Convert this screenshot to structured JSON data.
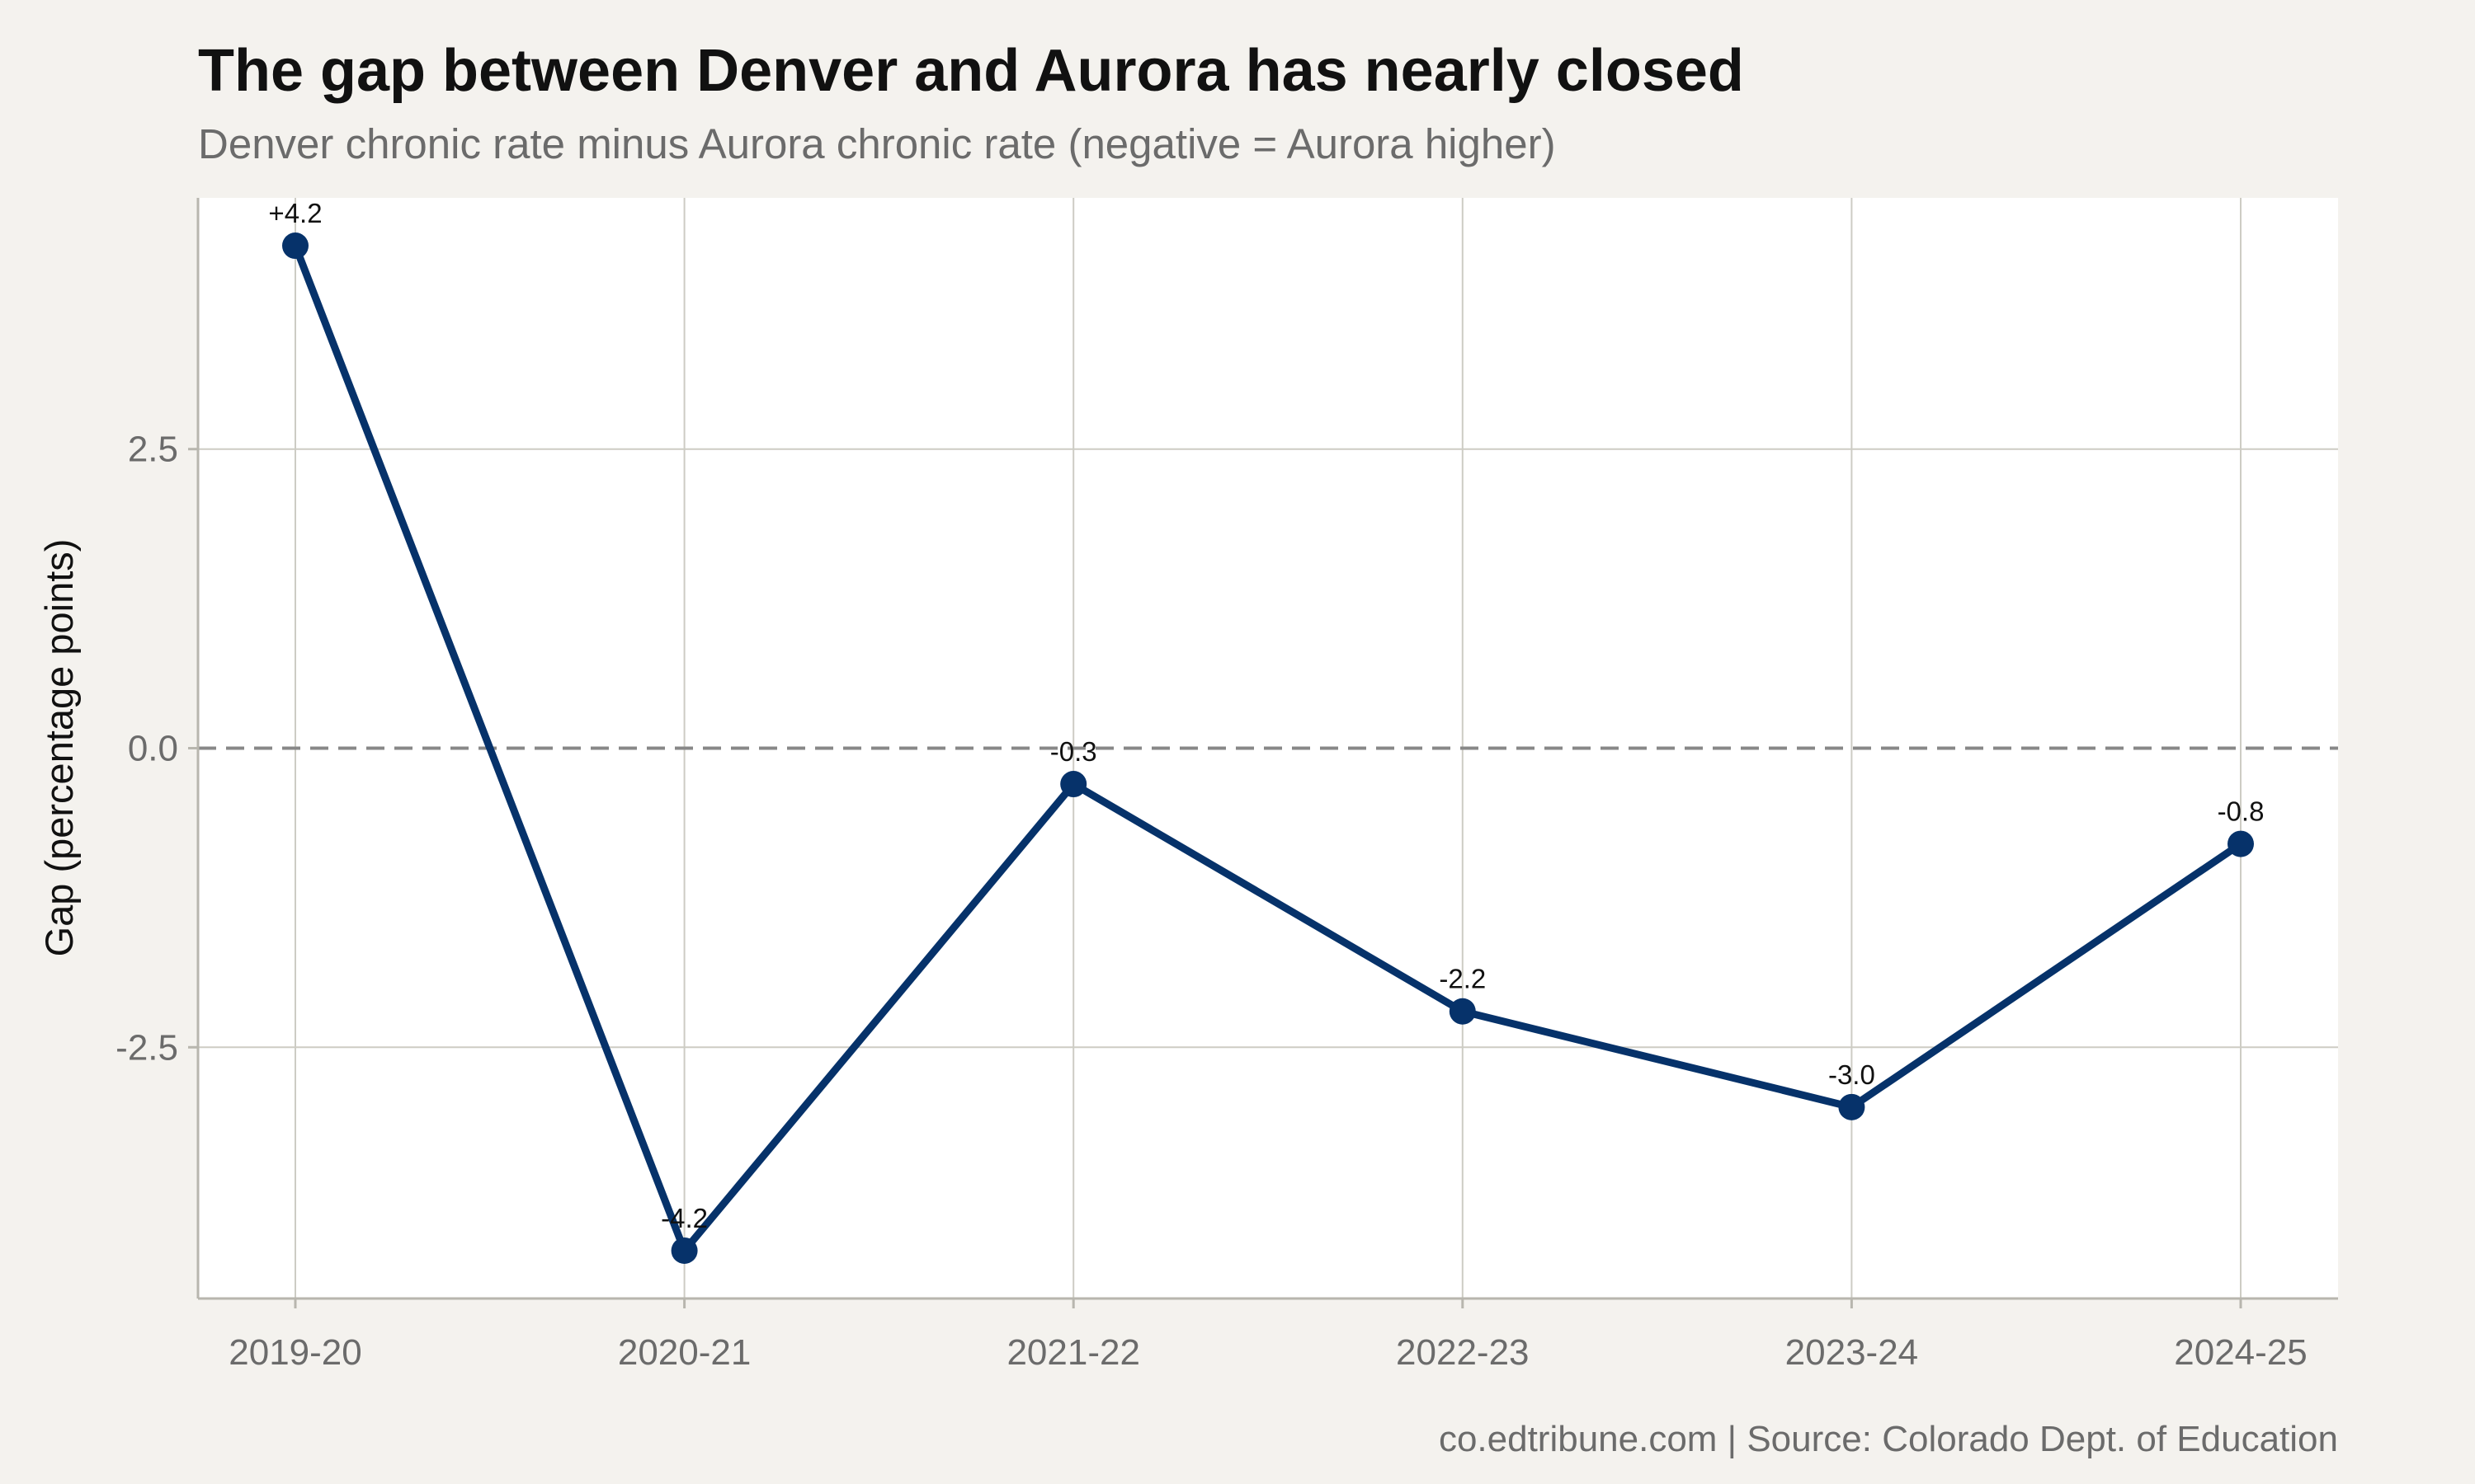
{
  "chart_data": {
    "type": "line",
    "title": "The gap between Denver and Aurora has nearly closed",
    "subtitle": "Denver chronic rate minus Aurora chronic rate (negative = Aurora higher)",
    "xlabel": "",
    "ylabel": "Gap (percentage points)",
    "caption": "co.edtribune.com | Source: Colorado Dept. of Education",
    "categories": [
      "2019-20",
      "2020-21",
      "2021-22",
      "2022-23",
      "2023-24",
      "2024-25"
    ],
    "values": [
      4.2,
      -4.2,
      -0.3,
      -2.2,
      -3.0,
      -0.8
    ],
    "data_labels": [
      "+4.2",
      "-4.2",
      "-0.3",
      "-2.2",
      "-3.0",
      "-0.8"
    ],
    "yticks": [
      -2.5,
      0.0,
      2.5
    ],
    "ytick_labels": [
      "-2.5",
      "0.0",
      "2.5"
    ],
    "ylim": [
      -4.6,
      4.6
    ],
    "reference_line": 0,
    "grid": true,
    "line_color": "#06326a",
    "reference_color": "#888888",
    "panel_color": "#ffffff",
    "background_color": "#f4f2ee"
  }
}
